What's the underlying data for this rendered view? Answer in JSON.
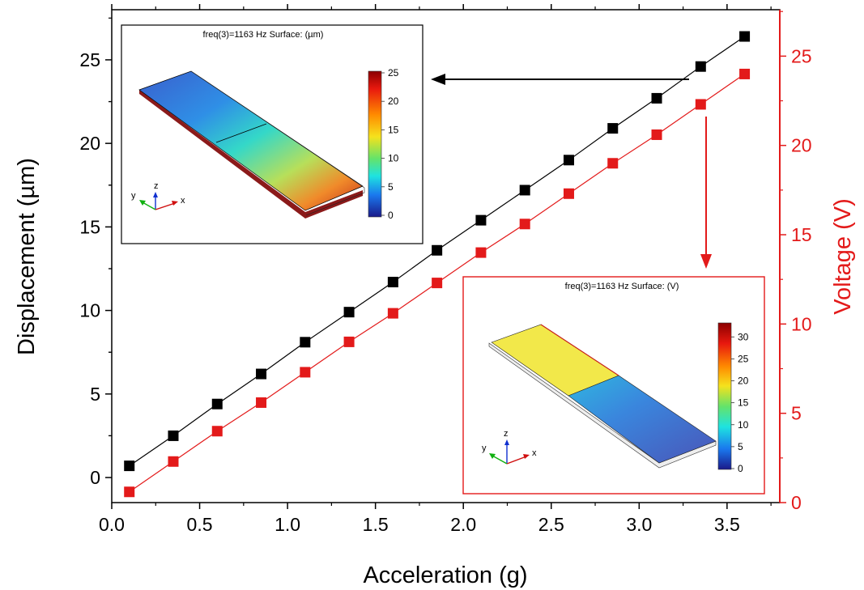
{
  "chart_data": {
    "type": "scatter",
    "xlabel": "Acceleration (g)",
    "ylabel_left": "Displacement (µm)",
    "ylabel_right": "Voltage (V)",
    "xlim": [
      0.0,
      3.8
    ],
    "ylim_left": [
      -1.5,
      28
    ],
    "ylim_right": [
      0,
      27.6
    ],
    "x_ticks": [
      "0.0",
      "0.5",
      "1.0",
      "1.5",
      "2.0",
      "2.5",
      "3.0",
      "3.5"
    ],
    "y_left_ticks": [
      "0",
      "5",
      "10",
      "15",
      "20",
      "25"
    ],
    "y_right_ticks": [
      "0",
      "5",
      "10",
      "15",
      "20",
      "25"
    ],
    "x": [
      0.1,
      0.35,
      0.6,
      0.85,
      1.1,
      1.35,
      1.6,
      1.85,
      2.1,
      2.35,
      2.6,
      2.85,
      3.1,
      3.35,
      3.6
    ],
    "series": [
      {
        "axis": "left",
        "color": "#000000",
        "marker": "square",
        "values": [
          0.7,
          2.5,
          4.4,
          6.2,
          8.1,
          9.9,
          11.7,
          13.6,
          15.4,
          17.2,
          19.0,
          20.9,
          22.7,
          24.6,
          26.4
        ]
      },
      {
        "axis": "right",
        "color": "#e31a1a",
        "marker": "square",
        "values": [
          0.6,
          2.3,
          4.0,
          5.6,
          7.3,
          9.0,
          10.6,
          12.3,
          14.0,
          15.6,
          17.3,
          19.0,
          20.6,
          22.3,
          24.0
        ]
      }
    ],
    "insets": [
      {
        "title": "freq(3)=1163 Hz   Surface: (µm)",
        "colorbar_ticks": [
          "0",
          "5",
          "10",
          "15",
          "20",
          "25"
        ],
        "axis_labels": [
          "z",
          "y",
          "x"
        ],
        "frame_color": "#000000"
      },
      {
        "title": "freq(3)=1163 Hz   Surface: (V)",
        "colorbar_ticks": [
          "0",
          "5",
          "10",
          "15",
          "20",
          "25",
          "30"
        ],
        "axis_labels": [
          "z",
          "y",
          "x"
        ],
        "frame_color": "#e31a1a"
      }
    ]
  }
}
